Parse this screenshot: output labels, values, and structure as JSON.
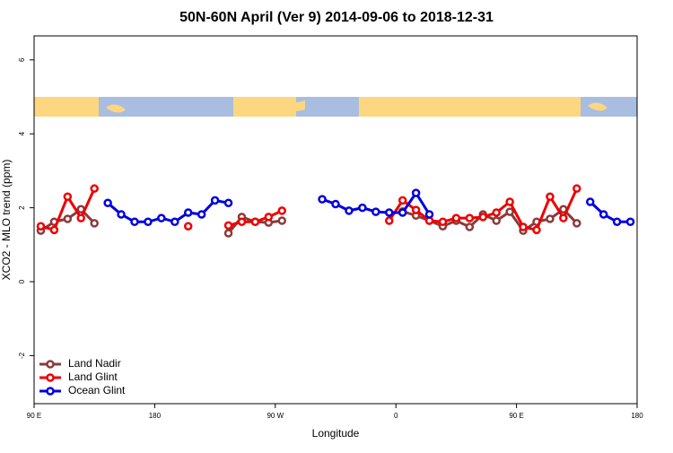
{
  "chart_data": {
    "type": "line",
    "title": "50N-60N April (Ver 9)   2014-09-06 to 2018-12-31",
    "x_label": "Longitude",
    "y_label": "XCO2 - MLO trend (ppm)",
    "x": [
      95,
      105,
      115,
      125,
      135,
      145,
      155,
      165,
      175,
      185,
      195,
      205,
      215,
      225,
      235,
      245,
      255,
      265,
      275,
      285,
      295,
      305,
      315,
      325,
      335,
      345,
      355,
      365,
      375,
      385,
      395,
      405,
      415,
      425,
      435,
      445,
      455,
      465,
      475,
      485,
      495,
      505,
      515,
      525,
      535
    ],
    "series": [
      {
        "name": "Land Nadir",
        "color": "#8b3a3a",
        "values": [
          1.38,
          1.62,
          1.7,
          1.96,
          1.58,
          null,
          null,
          null,
          null,
          null,
          null,
          null,
          null,
          null,
          1.31,
          1.75,
          1.62,
          1.6,
          1.65,
          null,
          null,
          null,
          null,
          null,
          null,
          null,
          null,
          1.9,
          1.79,
          1.65,
          1.5,
          1.65,
          1.48,
          1.82,
          1.65,
          1.89,
          1.38,
          1.62,
          1.7,
          1.96,
          1.58,
          null,
          null,
          null,
          null
        ]
      },
      {
        "name": "Land Glint",
        "color": "#ee0000",
        "values": [
          1.5,
          1.4,
          2.3,
          1.72,
          2.52,
          null,
          null,
          null,
          null,
          null,
          null,
          1.5,
          null,
          null,
          1.52,
          1.62,
          1.62,
          1.75,
          1.92,
          null,
          null,
          null,
          null,
          null,
          null,
          null,
          1.65,
          2.2,
          1.94,
          1.65,
          1.62,
          1.72,
          1.72,
          1.75,
          1.87,
          2.16,
          1.48,
          1.4,
          2.3,
          1.72,
          2.52,
          null,
          null,
          null,
          null
        ]
      },
      {
        "name": "Ocean Glint",
        "color": "#0000dd",
        "values": [
          null,
          null,
          null,
          null,
          null,
          2.13,
          1.82,
          1.62,
          1.62,
          1.72,
          1.62,
          1.87,
          1.82,
          2.2,
          2.13,
          null,
          null,
          null,
          null,
          null,
          null,
          2.23,
          2.1,
          1.92,
          2.0,
          1.89,
          1.87,
          1.87,
          2.4,
          1.82,
          null,
          null,
          null,
          null,
          null,
          null,
          null,
          null,
          null,
          null,
          null,
          2.16,
          1.82,
          1.62,
          1.62
        ]
      }
    ],
    "xlim": [
      90,
      540
    ],
    "xticks": [
      {
        "value": 90,
        "label": "90 E"
      },
      180,
      {
        "value": 270,
        "label": "90 W"
      },
      {
        "value": 360,
        "label": "0"
      },
      {
        "value": 450,
        "label": "90 E"
      },
      {
        "value": 540,
        "label": "180"
      }
    ],
    "ylim": [
      -3.3,
      6.65
    ],
    "yticks": [
      -2,
      0,
      2,
      4,
      6
    ],
    "legend": "bottom-left"
  }
}
